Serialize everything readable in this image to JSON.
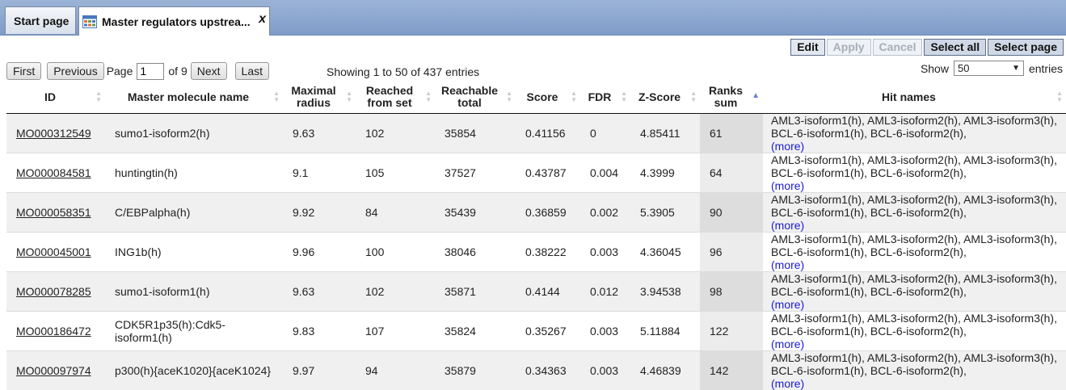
{
  "tabs": [
    {
      "label": "Start page"
    },
    {
      "label": "Master regulators upstrea...",
      "close": "x"
    }
  ],
  "actions": {
    "edit": "Edit",
    "apply": "Apply",
    "cancel": "Cancel",
    "select_all": "Select all",
    "select_page": "Select page"
  },
  "pager": {
    "first": "First",
    "previous": "Previous",
    "page_label": "Page",
    "page_value": "1",
    "of_label": "of 9",
    "next": "Next",
    "last": "Last",
    "showing": "Showing 1 to 50 of 437 entries",
    "show_label": "Show",
    "show_value": "50",
    "entries_label": "entries"
  },
  "columns": [
    "ID",
    "Master molecule name",
    "Maximal radius",
    "Reached from set",
    "Reachable total",
    "Score",
    "FDR",
    "Z-Score",
    "Ranks sum",
    "Hit names"
  ],
  "rows": [
    {
      "id": "MO000312549",
      "name": "sumo1-isoform2(h)",
      "radius": "9.63",
      "reached": "102",
      "total": "35854",
      "score": "0.41156",
      "fdr": "0",
      "z": "4.85411",
      "ranks": "61",
      "hits": "AML3-isoform1(h), AML3-isoform2(h), AML3-isoform3(h), BCL-6-isoform1(h), BCL-6-isoform2(h),",
      "more": "(more)"
    },
    {
      "id": "MO000084581",
      "name": "huntingtin(h)",
      "radius": "9.1",
      "reached": "105",
      "total": "37527",
      "score": "0.43787",
      "fdr": "0.004",
      "z": "4.3999",
      "ranks": "64",
      "hits": "AML3-isoform1(h), AML3-isoform2(h), AML3-isoform3(h), BCL-6-isoform1(h), BCL-6-isoform2(h),",
      "more": "(more)"
    },
    {
      "id": "MO000058351",
      "name": "C/EBPalpha(h)",
      "radius": "9.92",
      "reached": "84",
      "total": "35439",
      "score": "0.36859",
      "fdr": "0.002",
      "z": "5.3905",
      "ranks": "90",
      "hits": "AML3-isoform1(h), AML3-isoform2(h), AML3-isoform3(h), BCL-6-isoform1(h), BCL-6-isoform2(h),",
      "more": "(more)"
    },
    {
      "id": "MO000045001",
      "name": "ING1b(h)",
      "radius": "9.96",
      "reached": "100",
      "total": "38046",
      "score": "0.38222",
      "fdr": "0.003",
      "z": "4.36045",
      "ranks": "96",
      "hits": "AML3-isoform1(h), AML3-isoform2(h), AML3-isoform3(h), BCL-6-isoform1(h), BCL-6-isoform2(h),",
      "more": "(more)"
    },
    {
      "id": "MO000078285",
      "name": "sumo1-isoform1(h)",
      "radius": "9.63",
      "reached": "102",
      "total": "35871",
      "score": "0.4144",
      "fdr": "0.012",
      "z": "3.94538",
      "ranks": "98",
      "hits": "AML3-isoform1(h), AML3-isoform2(h), AML3-isoform3(h), BCL-6-isoform1(h), BCL-6-isoform2(h),",
      "more": "(more)"
    },
    {
      "id": "MO000186472",
      "name": "CDK5R1p35(h):Cdk5-isoform1(h)",
      "radius": "9.83",
      "reached": "107",
      "total": "35824",
      "score": "0.35267",
      "fdr": "0.003",
      "z": "5.11884",
      "ranks": "122",
      "hits": "AML3-isoform1(h), AML3-isoform2(h), AML3-isoform3(h), BCL-6-isoform1(h), BCL-6-isoform2(h),",
      "more": "(more)"
    },
    {
      "id": "MO000097974",
      "name": "p300(h){aceK1020}{aceK1024}",
      "radius": "9.97",
      "reached": "94",
      "total": "35879",
      "score": "0.34363",
      "fdr": "0.003",
      "z": "4.46839",
      "ranks": "142",
      "hits": "AML3-isoform1(h), AML3-isoform2(h), AML3-isoform3(h), BCL-6-isoform1(h), BCL-6-isoform2(h),",
      "more": "(more)"
    }
  ],
  "icons": {
    "tab": "table-icon",
    "sort": "sort-arrows-icon",
    "sort_asc": "sort-ascending-icon"
  },
  "colors": {
    "link_more": "#1a1ad6",
    "tabbar": "#8aa6cf"
  }
}
